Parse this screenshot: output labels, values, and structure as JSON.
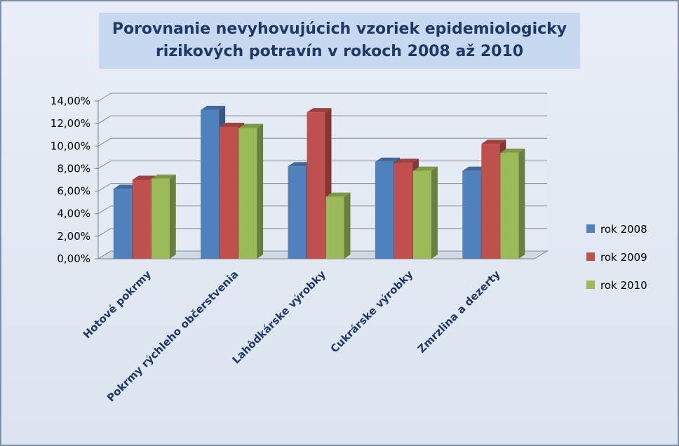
{
  "chart_data": {
    "type": "bar",
    "title": [
      "Porovnanie nevyhovujúcich vzoriek epidemiologicky",
      "rizikových potravín v rokoch 2008 až 2010"
    ],
    "categories": [
      "Hotové pokrmy",
      "Pokrmy rýchleho občerstvenia",
      "Lahôdkárske výrobky",
      "Cukrárske výrobky",
      "Zmrzlina a dezerty"
    ],
    "series": [
      {
        "name": "rok 2008",
        "color": "#4f81bd",
        "values": [
          6.2,
          13.2,
          8.2,
          8.6,
          7.8
        ]
      },
      {
        "name": "rok 2009",
        "color": "#c0504d",
        "values": [
          7.0,
          11.7,
          13.0,
          8.5,
          10.2
        ]
      },
      {
        "name": "rok 2010",
        "color": "#9bbb59",
        "values": [
          7.1,
          11.6,
          5.5,
          7.8,
          9.4
        ]
      }
    ],
    "ylim": [
      0,
      14
    ],
    "ytick_step": 2,
    "ytick_labels": [
      "0,00%",
      "2,00%",
      "4,00%",
      "6,00%",
      "8,00%",
      "10,00%",
      "12,00%",
      "14,00%"
    ],
    "grid": true,
    "legend_position": "right",
    "style": "3d-clustered-column"
  }
}
